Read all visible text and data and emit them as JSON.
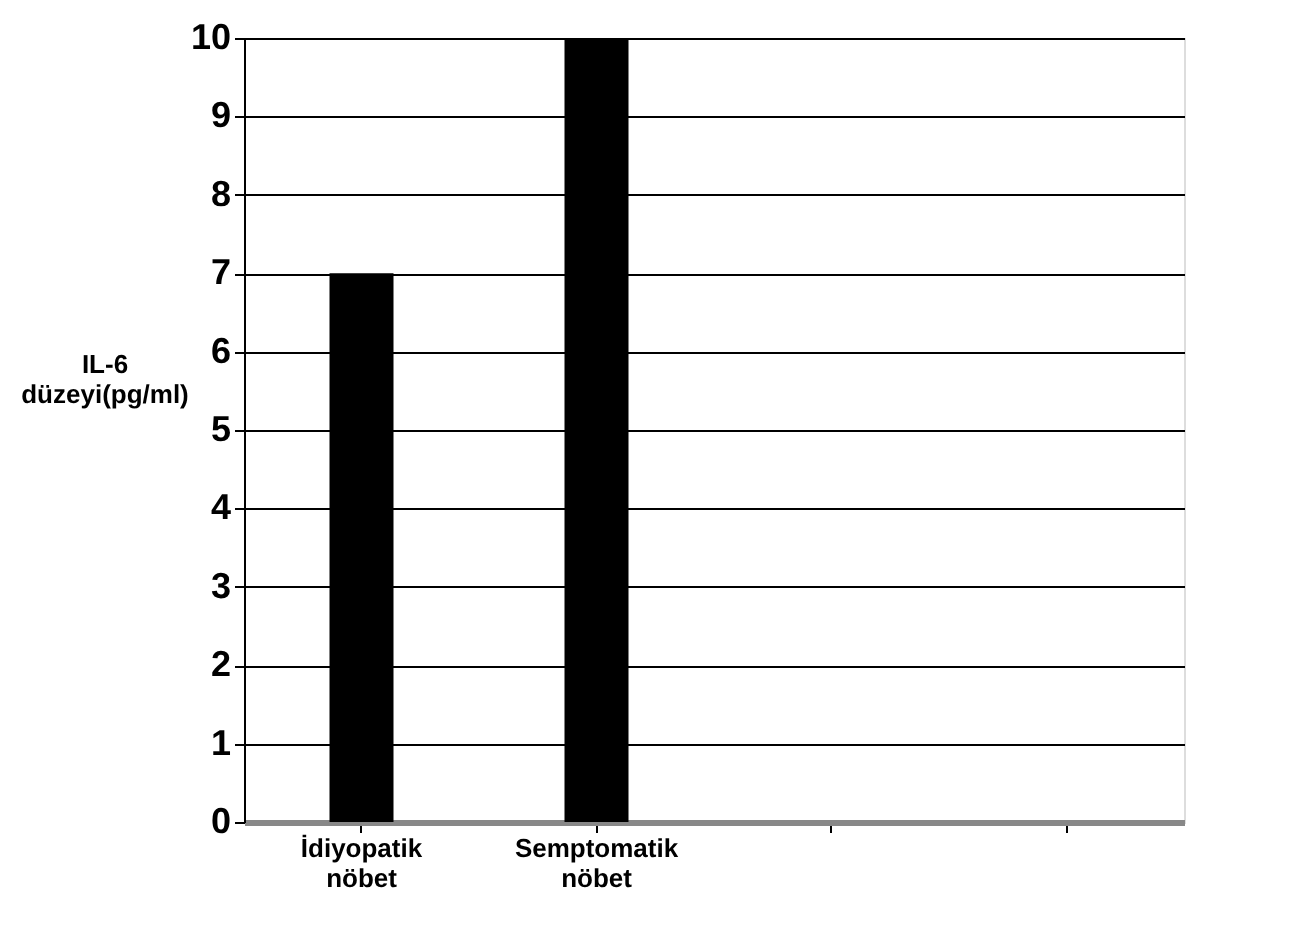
{
  "chart_data": {
    "type": "bar",
    "ylabel": "IL-6 düzeyi(pg/ml)",
    "categories": [
      "İdiyopatik nöbet",
      "Semptomatik nöbet",
      null,
      null
    ],
    "values": [
      7,
      10,
      null,
      null
    ],
    "color": "#000000",
    "ylim": [
      0,
      10
    ],
    "yticks": [
      0,
      1,
      2,
      3,
      4,
      5,
      6,
      7,
      8,
      9,
      10
    ],
    "grid": "y"
  }
}
